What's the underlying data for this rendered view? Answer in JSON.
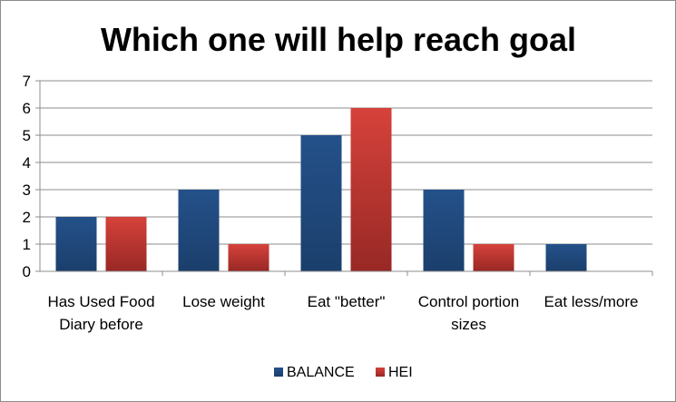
{
  "chart_data": {
    "type": "bar",
    "title": "Which one will help reach goal",
    "categories": [
      [
        "Has Used Food",
        "Diary before"
      ],
      [
        "Lose weight"
      ],
      [
        "Eat \"better\""
      ],
      [
        "Control portion",
        "sizes"
      ],
      [
        "Eat less/more"
      ]
    ],
    "series": [
      {
        "name": "BALANCE",
        "values": [
          2,
          3,
          5,
          3,
          1
        ],
        "color": "#1f497d"
      },
      {
        "name": "HEI",
        "values": [
          2,
          1,
          6,
          1,
          0
        ],
        "color": "#c0392b"
      }
    ],
    "ylim": [
      0,
      7
    ],
    "yticks": [
      0,
      1,
      2,
      3,
      4,
      5,
      6,
      7
    ],
    "grid": true,
    "legend_position": "bottom"
  }
}
